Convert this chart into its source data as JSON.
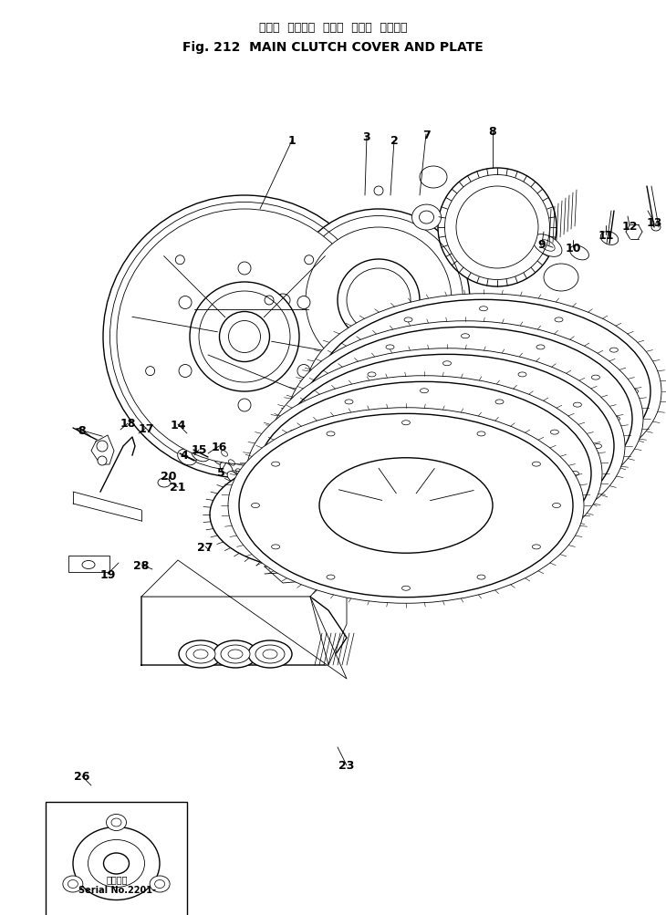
{
  "title_japanese": "メイン  クラッチ  カバー  および  プレート",
  "title_english": "Fig. 212  MAIN CLUTCH COVER AND PLATE",
  "serial_label_jp": "適用番号",
  "serial_label_en": "Serial No.2201-",
  "bg_color": "#ffffff",
  "lc": "#000000",
  "figsize": [
    7.3,
    10.04
  ],
  "dpi": 100
}
